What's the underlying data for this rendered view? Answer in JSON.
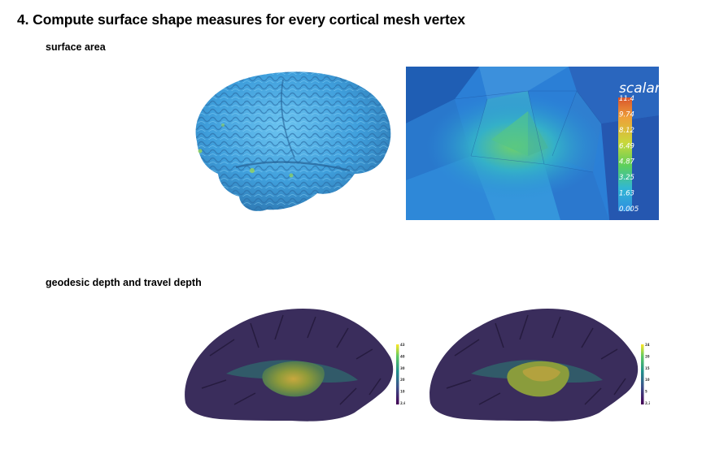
{
  "title": "4. Compute surface shape measures for every cortical mesh vertex",
  "sections": {
    "surface_area": {
      "label": "surface area"
    },
    "depth": {
      "label": "geodesic depth and travel depth"
    }
  },
  "surface_colorbar": {
    "title": "scalar",
    "ticks": [
      "11.4",
      "9.74",
      "8.12",
      "6.49",
      "4.87",
      "3.25",
      "1.63",
      "0.005"
    ]
  },
  "geodesic_colorbar": {
    "ticks": [
      "43.04",
      "40",
      "30",
      "20",
      "10",
      "2.64"
    ]
  },
  "travel_colorbar": {
    "ticks": [
      "24.95",
      "20",
      "15",
      "10",
      "5",
      "2.35"
    ]
  },
  "colors": {
    "brain_blue": "#3fa0dc",
    "viridis_dark": "#3b2a5a",
    "viridis_green": "#6e8a34",
    "viridis_yellow": "#c9a640"
  }
}
